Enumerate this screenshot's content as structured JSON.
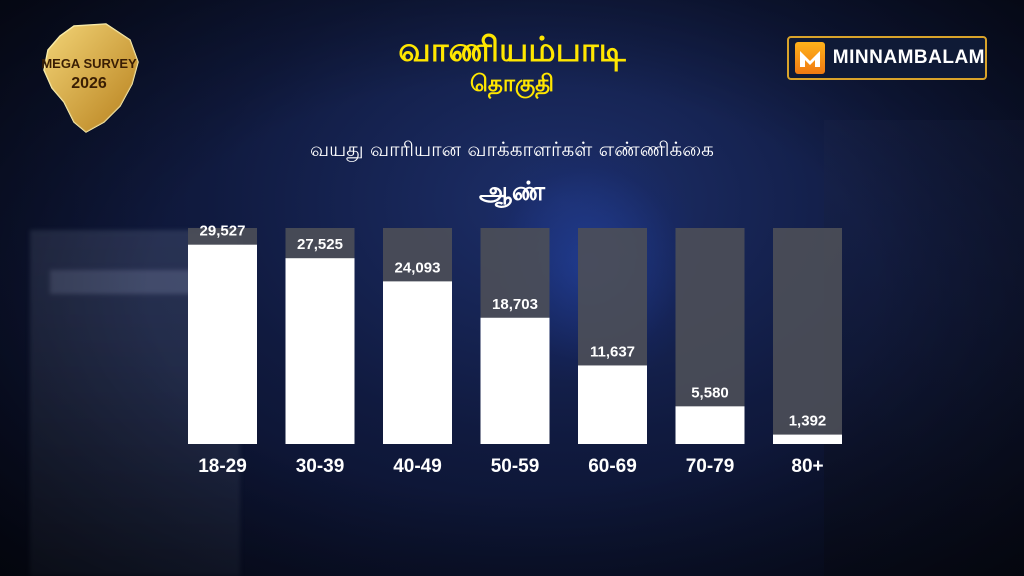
{
  "header": {
    "title": "வாணியம்பாடி",
    "subtitle": "தொகுதி",
    "heading": "வயது வாரியான வாக்காளர்கள் எண்ணிக்கை",
    "gender": "ஆண்"
  },
  "logo": {
    "line1": "MEGA SURVEY",
    "line2": "2026"
  },
  "brand": {
    "name": "MINNAMBALAM"
  },
  "colors": {
    "title": "#ffe600",
    "bar_fill": "#ffffff",
    "bar_track": "#4c4f58",
    "logo_gold": "#e0a82e"
  },
  "chart_data": {
    "type": "bar",
    "categories": [
      "18-29",
      "30-39",
      "40-49",
      "50-59",
      "60-69",
      "70-79",
      "80+"
    ],
    "values": [
      29527,
      27525,
      24093,
      18703,
      11637,
      5580,
      1392
    ],
    "value_labels": [
      "29,527",
      "27,525",
      "24,093",
      "18,703",
      "11,637",
      "5,580",
      "1,392"
    ],
    "ylim": [
      0,
      32000
    ],
    "grid": false
  }
}
